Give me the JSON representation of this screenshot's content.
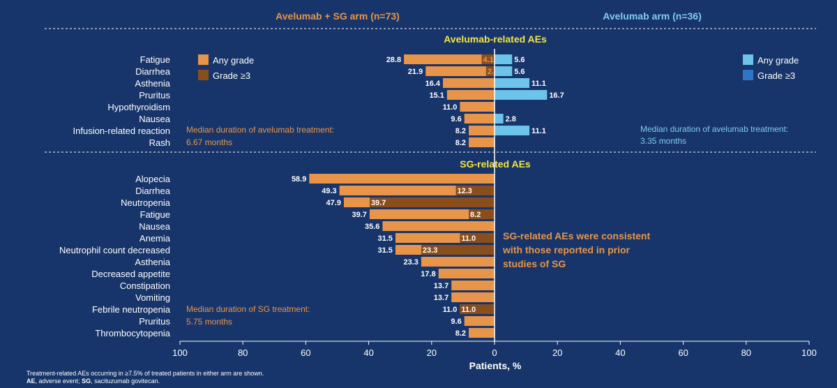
{
  "header": {
    "left_arm": "Avelumab + SG arm (n=73)",
    "right_arm": "Avelumab arm (n=36)"
  },
  "colors": {
    "background": "#17356a",
    "sg_any": "#e8954a",
    "sg_grade3": "#8a4e1c",
    "av_any": "#6cc4ea",
    "av_grade3": "#2f74c8",
    "section_title": "#f4e640",
    "left_header": "#e8954a",
    "right_header": "#7fcdee"
  },
  "legend_left": {
    "any": "Any grade",
    "g3": "Grade ≥3"
  },
  "legend_right": {
    "any": "Any grade",
    "g3": "Grade ≥3"
  },
  "notes": {
    "left_av_line1": "Median duration of avelumab treatment:",
    "left_av_line2": "6.67 months",
    "right_av_line1": "Median duration of avelumab treatment:",
    "right_av_line2": "3.35 months",
    "sg_line1": "Median duration of SG treatment:",
    "sg_line2": "5.75 months",
    "consistent_line1": "SG-related AEs were consistent",
    "consistent_line2": "with those reported in prior",
    "consistent_line3": "studies of SG"
  },
  "footer": {
    "line1": "Treatment-related AEs occurring in ≥7.5% of treated patients in either arm are shown.",
    "ae_abbr": "AE",
    "ae_def": ", adverse event; ",
    "sg_abbr": "SG",
    "sg_def": ", sacituzumab govitecan."
  },
  "chart_data": {
    "type": "bar",
    "orientation": "horizontal-butterfly",
    "xlabel": "Patients, %",
    "xlim": [
      -100,
      100
    ],
    "xticks": [
      "100",
      "80",
      "60",
      "40",
      "20",
      "0",
      "20",
      "40",
      "60",
      "80",
      "100"
    ],
    "series_names": [
      "Any grade",
      "Grade ≥3"
    ],
    "sections": [
      {
        "title": "Avelumab-related AEs",
        "categories": [
          "Fatigue",
          "Diarrhea",
          "Asthenia",
          "Pruritus",
          "Hypothyroidism",
          "Nausea",
          "Infusion-related reaction",
          "Rash"
        ],
        "left_any": [
          28.8,
          21.9,
          16.4,
          15.1,
          11.0,
          9.6,
          8.2,
          8.2
        ],
        "left_g3": [
          4.1,
          2.7,
          null,
          null,
          null,
          null,
          null,
          null
        ],
        "right_any": [
          5.6,
          5.6,
          11.1,
          16.7,
          null,
          2.8,
          11.1,
          null
        ],
        "right_g3": [
          null,
          null,
          null,
          null,
          null,
          null,
          null,
          null
        ],
        "left_any_labels": [
          "28.8",
          "21.9",
          "16.4",
          "15.1",
          "11.0",
          "9.6",
          "8.2",
          "8.2"
        ],
        "left_g3_labels": [
          "4.1",
          "2.7",
          "",
          "",
          "",
          "",
          "",
          ""
        ],
        "right_any_labels": [
          "5.6",
          "5.6",
          "11.1",
          "16.7",
          "",
          "2.8",
          "11.1",
          ""
        ]
      },
      {
        "title": "SG-related AEs",
        "categories": [
          "Alopecia",
          "Diarrhea",
          "Neutropenia",
          "Fatigue",
          "Nausea",
          "Anemia",
          "Neutrophil count decreased",
          "Asthenia",
          "Decreased appetite",
          "Constipation",
          "Vomiting",
          "Febrile neutropenia",
          "Pruritus",
          "Thrombocytopenia"
        ],
        "left_any": [
          58.9,
          49.3,
          47.9,
          39.7,
          35.6,
          31.5,
          31.5,
          23.3,
          17.8,
          13.7,
          13.7,
          11.0,
          9.6,
          8.2
        ],
        "left_g3": [
          null,
          12.3,
          39.7,
          8.2,
          null,
          11.0,
          23.3,
          null,
          null,
          null,
          null,
          11.0,
          null,
          null
        ],
        "left_any_labels": [
          "58.9",
          "49.3",
          "47.9",
          "39.7",
          "35.6",
          "31.5",
          "31.5",
          "23.3",
          "17.8",
          "13.7",
          "13.7",
          "11.0",
          "9.6",
          "8.2"
        ],
        "left_g3_labels": [
          "",
          "12.3",
          "39.7",
          "8.2",
          "",
          "11.0",
          "23.3",
          "",
          "",
          "",
          "",
          "11.0",
          "",
          ""
        ]
      }
    ]
  }
}
